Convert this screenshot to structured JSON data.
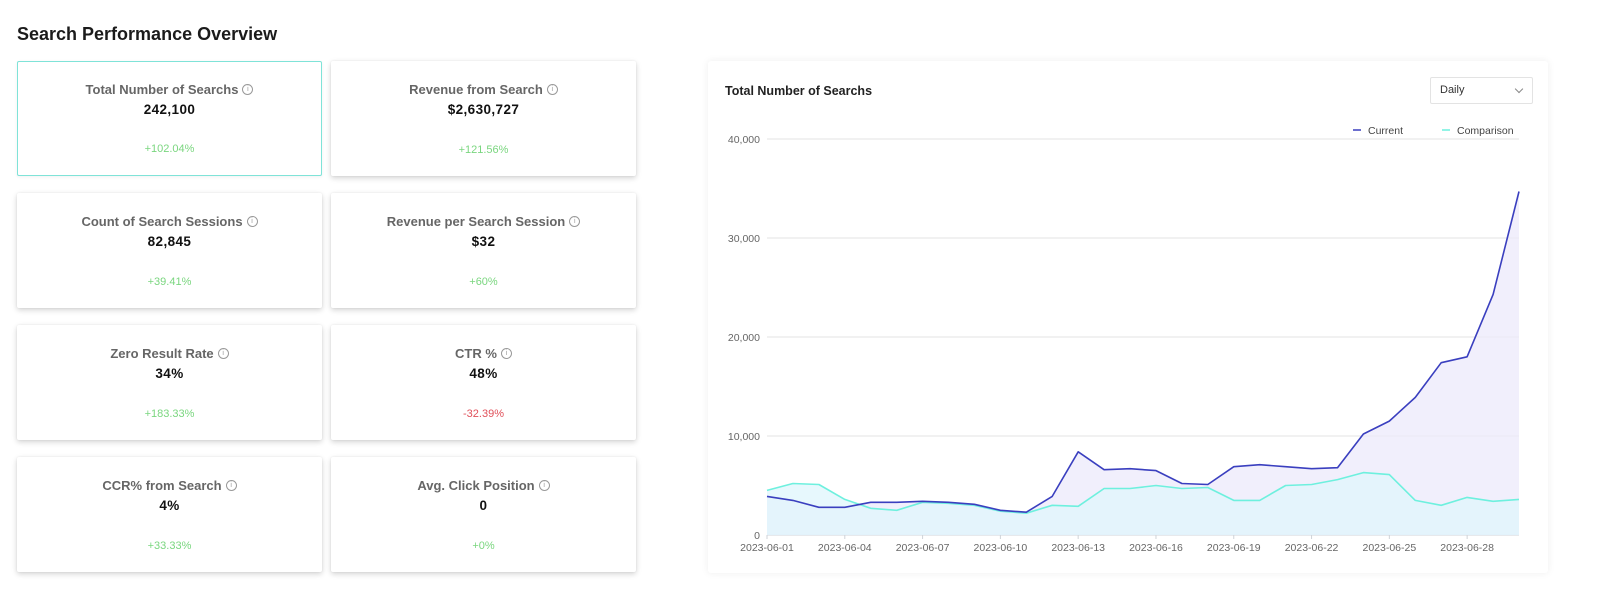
{
  "page": {
    "title": "Search Performance Overview"
  },
  "cards": [
    {
      "title": "Total Number of Searchs",
      "value": "242,100",
      "change": "+102.04%",
      "trend": "positive",
      "selected": true
    },
    {
      "title": "Revenue from Search",
      "value": "$2,630,727",
      "change": "+121.56%",
      "trend": "positive"
    },
    {
      "title": "Count of Search Sessions",
      "value": "82,845",
      "change": "+39.41%",
      "trend": "positive"
    },
    {
      "title": "Revenue per Search Session",
      "value": "$32",
      "change": "+60%",
      "trend": "positive"
    },
    {
      "title": "Zero Result Rate",
      "value": "34%",
      "change": "+183.33%",
      "trend": "positive"
    },
    {
      "title": "CTR %",
      "value": "48%",
      "change": "-32.39%",
      "trend": "negative"
    },
    {
      "title": "CCR% from Search",
      "value": "4%",
      "change": "+33.33%",
      "trend": "positive"
    },
    {
      "title": "Avg. Click Position",
      "value": "0",
      "change": "+0%",
      "trend": "positive"
    }
  ],
  "info_icon_glyph": "i",
  "chart_panel": {
    "title": "Total Number of Searchs",
    "granularity": "Daily"
  },
  "chart_data": {
    "type": "area",
    "x": [
      "2023-06-01",
      "2023-06-02",
      "2023-06-03",
      "2023-06-04",
      "2023-06-05",
      "2023-06-06",
      "2023-06-07",
      "2023-06-08",
      "2023-06-09",
      "2023-06-10",
      "2023-06-11",
      "2023-06-12",
      "2023-06-13",
      "2023-06-14",
      "2023-06-15",
      "2023-06-16",
      "2023-06-17",
      "2023-06-18",
      "2023-06-19",
      "2023-06-20",
      "2023-06-21",
      "2023-06-22",
      "2023-06-23",
      "2023-06-24",
      "2023-06-25",
      "2023-06-26",
      "2023-06-27",
      "2023-06-28",
      "2023-06-29",
      "2023-06-30"
    ],
    "x_tick_labels": [
      "2023-06-01",
      "2023-06-04",
      "2023-06-07",
      "2023-06-10",
      "2023-06-13",
      "2023-06-16",
      "2023-06-19",
      "2023-06-22",
      "2023-06-25",
      "2023-06-28"
    ],
    "series": [
      {
        "name": "Current",
        "color": "#3a3fbf",
        "fill": "#ece9fb",
        "values": [
          3900,
          3500,
          2800,
          2800,
          3300,
          3300,
          3400,
          3300,
          3100,
          2500,
          2300,
          3900,
          8400,
          6600,
          6700,
          6500,
          5200,
          5100,
          6900,
          7100,
          6900,
          6700,
          6800,
          10200,
          11500,
          13900,
          17400,
          18000,
          24300,
          34700
        ]
      },
      {
        "name": "Comparison",
        "color": "#6ef0de",
        "fill": "#dff6fc",
        "values": [
          4500,
          5200,
          5100,
          3600,
          2700,
          2500,
          3300,
          3200,
          3000,
          2400,
          2200,
          3000,
          2900,
          4700,
          4700,
          5000,
          4700,
          4800,
          3500,
          3500,
          5000,
          5100,
          5600,
          6300,
          6100,
          3500,
          3000,
          3800,
          3400,
          3600
        ]
      }
    ],
    "ylim": [
      0,
      40000
    ],
    "y_ticks": [
      0,
      10000,
      20000,
      30000,
      40000
    ],
    "y_tick_labels": [
      "0",
      "10,000",
      "20,000",
      "30,000",
      "40,000"
    ],
    "grid": true,
    "legend_position": "top-right"
  }
}
